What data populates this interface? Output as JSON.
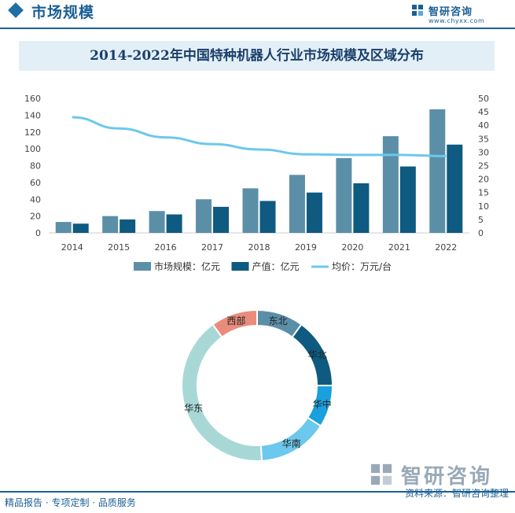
{
  "header": {
    "title": "市场规模"
  },
  "logo": {
    "name": "智研咨询",
    "url": "www.chyxx.com"
  },
  "chart_data": [
    {
      "type": "bar",
      "title": "2014-2022年中国特种机器人行业市场规模及区域分布",
      "categories": [
        "2014",
        "2015",
        "2016",
        "2017",
        "2018",
        "2019",
        "2020",
        "2021",
        "2022"
      ],
      "series": [
        {
          "name": "市场规模：亿元",
          "type": "bar",
          "axis": "left",
          "color": "#5b8fa8",
          "values": [
            13,
            20,
            26,
            40,
            53,
            69,
            89,
            115,
            147
          ]
        },
        {
          "name": "产值：亿元",
          "type": "bar",
          "axis": "left",
          "color": "#0e5a80",
          "values": [
            11,
            16,
            22,
            31,
            38,
            48,
            59,
            79,
            105
          ]
        },
        {
          "name": "均价：万元/台",
          "type": "line",
          "axis": "right",
          "color": "#6cc8ec",
          "values": [
            43,
            38.8,
            35.5,
            33,
            31,
            29.2,
            29,
            29,
            28.5
          ]
        }
      ],
      "y_left": {
        "min": 0,
        "max": 160,
        "ticks": [
          "0",
          "20",
          "40",
          "60",
          "80",
          "100",
          "120",
          "140",
          "160"
        ]
      },
      "y_right": {
        "min": 0,
        "max": 50,
        "ticks": [
          "0",
          "5",
          "10",
          "15",
          "20",
          "25",
          "30",
          "35",
          "40",
          "45",
          "50"
        ]
      },
      "grid": false,
      "legend": "bottom"
    },
    {
      "type": "pie",
      "variant": "donut",
      "labels": [
        "东北",
        "华北",
        "华中",
        "华南",
        "华东",
        "西部"
      ],
      "values": [
        10,
        15,
        9,
        15,
        41,
        10
      ],
      "colors": [
        "#5b8fa8",
        "#0e5a80",
        "#1aa0dc",
        "#6cc8ec",
        "#a8d8d6",
        "#ea8c7c"
      ]
    }
  ],
  "footer": {
    "left": "精品报告 · 专项定制 · 品质服务",
    "source": "资料来源：智研咨询整理",
    "watermark": "智研咨询"
  }
}
